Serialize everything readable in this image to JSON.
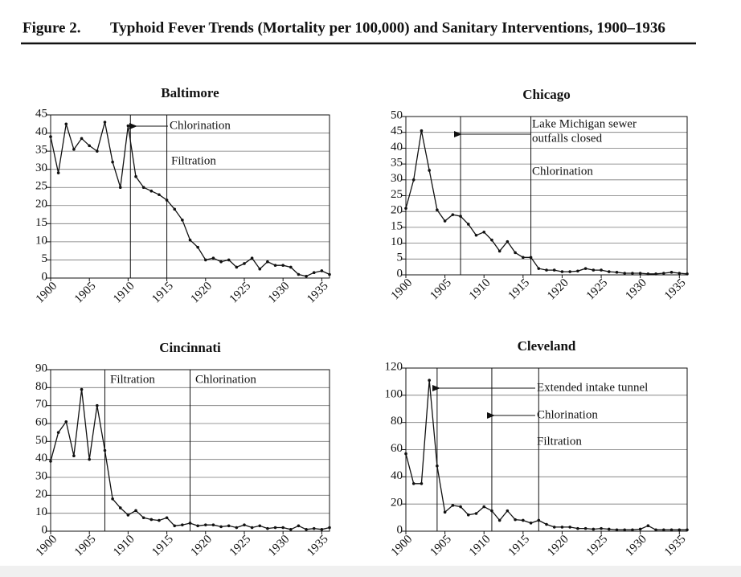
{
  "figure_label": "Figure 2.",
  "title": "Typhoid Fever Trends (Mortality per 100,000) and Sanitary Interventions, 1900–1936",
  "chart_data": [
    {
      "type": "line",
      "title": "Baltimore",
      "x": [
        1900,
        1901,
        1902,
        1903,
        1904,
        1905,
        1906,
        1907,
        1908,
        1909,
        1910,
        1911,
        1912,
        1913,
        1914,
        1915,
        1916,
        1917,
        1918,
        1919,
        1920,
        1921,
        1922,
        1923,
        1924,
        1925,
        1926,
        1927,
        1928,
        1929,
        1930,
        1931,
        1932,
        1933,
        1934,
        1935,
        1936
      ],
      "values": [
        39,
        29,
        42.5,
        35.5,
        38.5,
        36.5,
        35,
        43,
        32,
        25,
        42,
        28,
        25,
        24,
        23,
        21.5,
        19,
        16,
        10.5,
        8.5,
        5,
        5.5,
        4.5,
        5,
        3,
        4,
        5.5,
        2.5,
        4.5,
        3.5,
        3.5,
        3,
        1,
        0.5,
        1.5,
        2,
        1
      ],
      "color": "#111111",
      "xlim": [
        1900,
        1936
      ],
      "xticks": [
        1900,
        1905,
        1910,
        1915,
        1920,
        1925,
        1930,
        1935
      ],
      "ylim": [
        0,
        45
      ],
      "yticks": [
        0,
        5,
        10,
        15,
        20,
        25,
        30,
        35,
        40,
        45
      ],
      "grid": true,
      "events": [
        1910.3,
        1915
      ],
      "annotations": [
        "Chlorination",
        "Filtration"
      ]
    },
    {
      "type": "line",
      "title": "Chicago",
      "x": [
        1900,
        1901,
        1902,
        1903,
        1904,
        1905,
        1906,
        1907,
        1908,
        1909,
        1910,
        1911,
        1912,
        1913,
        1914,
        1915,
        1916,
        1917,
        1918,
        1919,
        1920,
        1921,
        1922,
        1923,
        1924,
        1925,
        1926,
        1927,
        1928,
        1929,
        1930,
        1931,
        1932,
        1933,
        1934,
        1935,
        1936
      ],
      "values": [
        21,
        30,
        45.5,
        33,
        20.5,
        17,
        19,
        18.5,
        16,
        12.5,
        13.5,
        11,
        7.5,
        10.5,
        7,
        5.5,
        5.5,
        2,
        1.5,
        1.5,
        1,
        1,
        1.2,
        2,
        1.5,
        1.5,
        1,
        0.8,
        0.5,
        0.5,
        0.5,
        0.3,
        0.3,
        0.5,
        0.8,
        0.5,
        0.3
      ],
      "color": "#111111",
      "xlim": [
        1900,
        1936
      ],
      "xticks": [
        1900,
        1905,
        1910,
        1915,
        1920,
        1925,
        1930,
        1935
      ],
      "ylim": [
        0,
        50
      ],
      "yticks": [
        0,
        5,
        10,
        15,
        20,
        25,
        30,
        35,
        40,
        45,
        50
      ],
      "grid": true,
      "events": [
        1907,
        1916
      ],
      "annotations": [
        "Lake Michigan sewer",
        "outfalls closed",
        "Chlorination"
      ]
    },
    {
      "type": "line",
      "title": "Cincinnati",
      "x": [
        1900,
        1901,
        1902,
        1903,
        1904,
        1905,
        1906,
        1907,
        1908,
        1909,
        1910,
        1911,
        1912,
        1913,
        1914,
        1915,
        1916,
        1917,
        1918,
        1919,
        1920,
        1921,
        1922,
        1923,
        1924,
        1925,
        1926,
        1927,
        1928,
        1929,
        1930,
        1931,
        1932,
        1933,
        1934,
        1935,
        1936
      ],
      "values": [
        39,
        55,
        61,
        42,
        79,
        40,
        70,
        45,
        18,
        13,
        9,
        11.5,
        7.5,
        6.5,
        6,
        7.5,
        3,
        3.5,
        4.5,
        3,
        3.5,
        3.5,
        2.5,
        3,
        2,
        3.5,
        2,
        3,
        1.5,
        2,
        2,
        1,
        3,
        1,
        1.5,
        1,
        2
      ],
      "color": "#111111",
      "xlim": [
        1900,
        1936
      ],
      "xticks": [
        1900,
        1905,
        1910,
        1915,
        1920,
        1925,
        1930,
        1935
      ],
      "ylim": [
        0,
        90
      ],
      "yticks": [
        0,
        10,
        20,
        30,
        40,
        50,
        60,
        70,
        80,
        90
      ],
      "grid": true,
      "events": [
        1907,
        1918
      ],
      "annotations": [
        "Filtration",
        "Chlorination"
      ]
    },
    {
      "type": "line",
      "title": "Cleveland",
      "x": [
        1900,
        1901,
        1902,
        1903,
        1904,
        1905,
        1906,
        1907,
        1908,
        1909,
        1910,
        1911,
        1912,
        1913,
        1914,
        1915,
        1916,
        1917,
        1918,
        1919,
        1920,
        1921,
        1922,
        1923,
        1924,
        1925,
        1926,
        1927,
        1928,
        1929,
        1930,
        1931,
        1932,
        1933,
        1934,
        1935,
        1936
      ],
      "values": [
        57,
        35,
        35,
        111,
        48,
        14,
        19,
        18,
        12,
        13,
        18,
        15,
        8,
        15,
        8.5,
        8,
        6,
        8,
        5,
        3,
        3,
        3,
        2,
        2,
        1.5,
        2,
        1.5,
        1,
        1,
        1,
        1.5,
        4,
        1,
        1,
        1,
        1,
        1
      ],
      "color": "#111111",
      "xlim": [
        1900,
        1936
      ],
      "xticks": [
        1900,
        1905,
        1910,
        1915,
        1920,
        1925,
        1930,
        1935
      ],
      "ylim": [
        0,
        120
      ],
      "yticks": [
        0,
        20,
        40,
        60,
        80,
        100,
        120
      ],
      "grid": true,
      "events": [
        1904,
        1911,
        1917
      ],
      "annotations": [
        "Extended intake tunnel",
        "Chlorination",
        "Filtration"
      ]
    }
  ]
}
